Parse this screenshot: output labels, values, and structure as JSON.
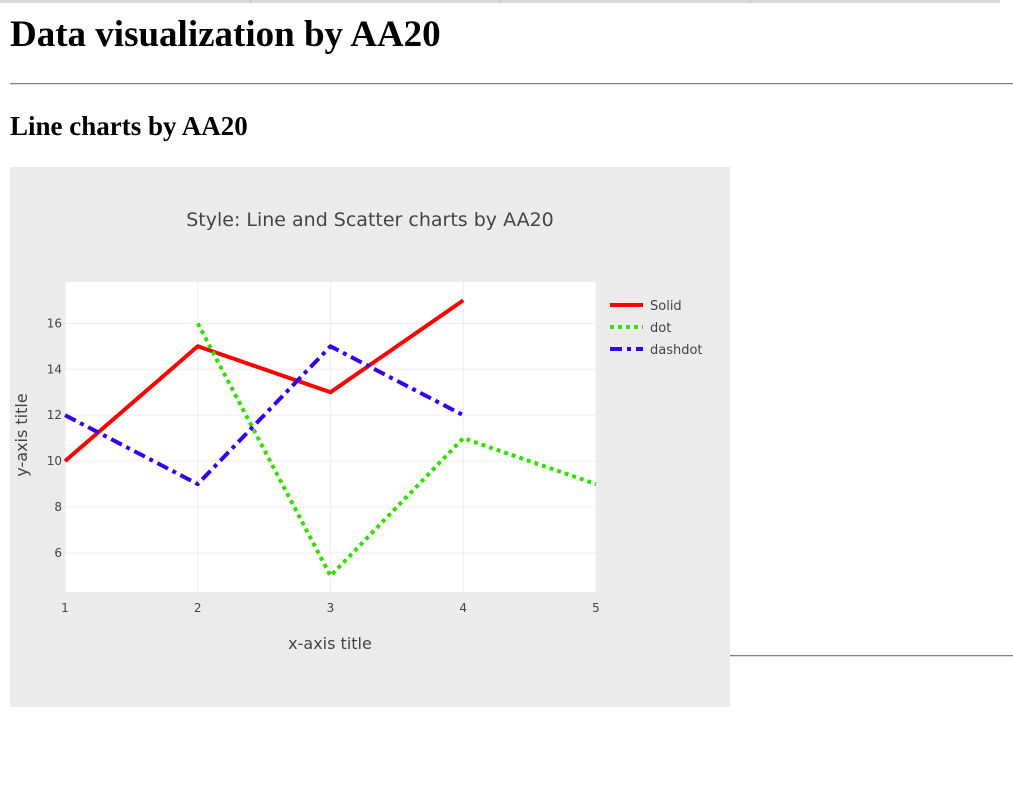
{
  "page": {
    "title": "Data visualization by AA20",
    "section_title": "Line charts by AA20"
  },
  "chart_data": {
    "type": "line",
    "title": "Style: Line and Scatter charts by AA20",
    "xlabel": "x-axis title",
    "ylabel": "y-axis title",
    "xlim": [
      1,
      5
    ],
    "ylim": [
      4.3,
      17.8
    ],
    "x_ticks": [
      1,
      2,
      3,
      4,
      5
    ],
    "y_ticks": [
      6,
      8,
      10,
      12,
      14,
      16
    ],
    "grid": true,
    "legend_position": "right",
    "series": [
      {
        "name": "Solid",
        "x": [
          1,
          2,
          3,
          4
        ],
        "values": [
          10,
          15,
          13,
          17
        ],
        "color": "#ff0000",
        "dash": "solid"
      },
      {
        "name": "dot",
        "x": [
          2,
          3,
          4,
          5
        ],
        "values": [
          16,
          5,
          11,
          9
        ],
        "color": "#33dd00",
        "dash": "dot"
      },
      {
        "name": "dashdot",
        "x": [
          1,
          2,
          3,
          4
        ],
        "values": [
          12,
          9,
          15,
          12
        ],
        "color": "#3300ee",
        "dash": "dashdot"
      }
    ],
    "colors": {
      "paper_bg": "#ebebeb",
      "plot_bg": "#ffffff",
      "grid": "#eeeeee",
      "text": "#444444"
    }
  }
}
